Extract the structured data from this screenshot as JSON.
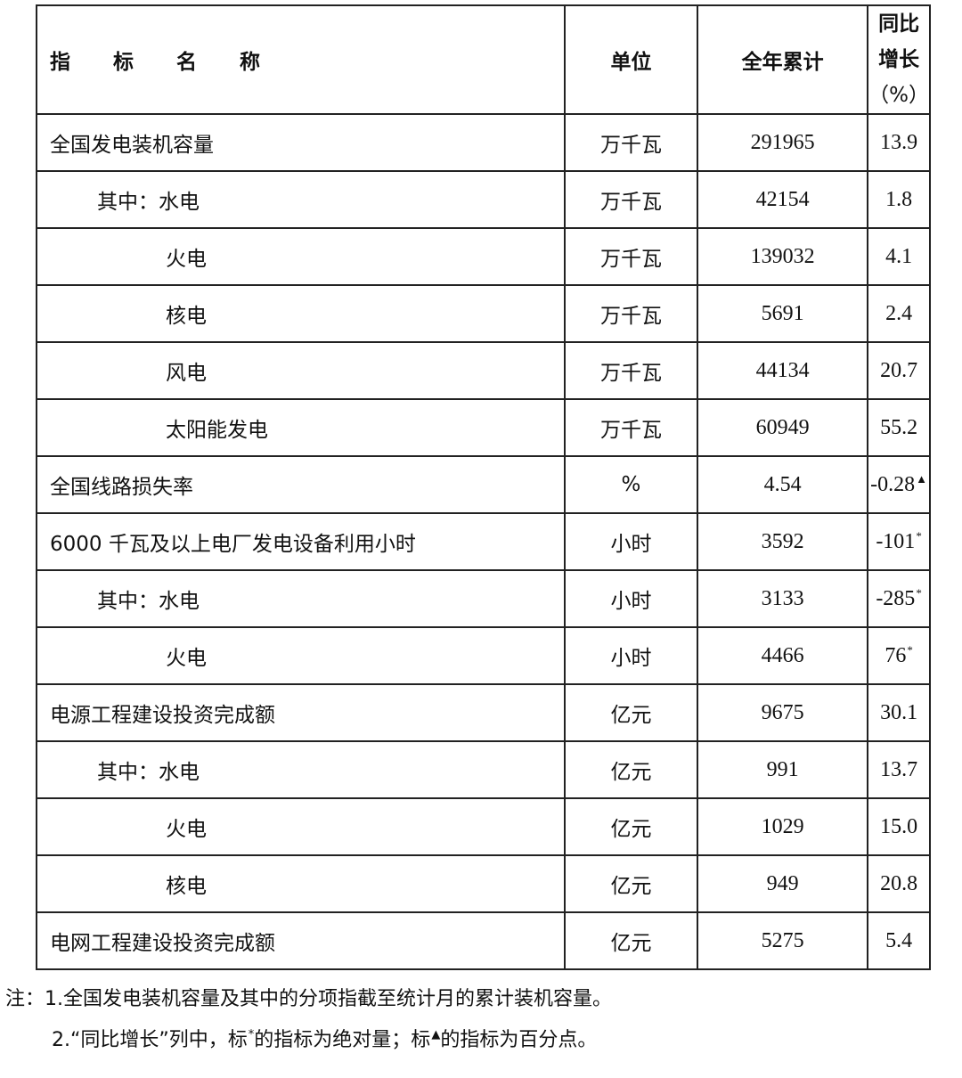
{
  "header": {
    "name": "指 标 名 称",
    "unit": "单位",
    "total": "全年累计",
    "growth_line1": "同比增长",
    "growth_line2": "（%）"
  },
  "rows": [
    {
      "name": "全国发电装机容量",
      "level": 0,
      "unit": "万千瓦",
      "total": "291965",
      "growth": "13.9",
      "mark": ""
    },
    {
      "name": "其中：水电",
      "level": 1,
      "unit": "万千瓦",
      "total": "42154",
      "growth": "1.8",
      "mark": ""
    },
    {
      "name": "火电",
      "level": 2,
      "unit": "万千瓦",
      "total": "139032",
      "growth": "4.1",
      "mark": ""
    },
    {
      "name": "核电",
      "level": 2,
      "unit": "万千瓦",
      "total": "5691",
      "growth": "2.4",
      "mark": ""
    },
    {
      "name": "风电",
      "level": 2,
      "unit": "万千瓦",
      "total": "44134",
      "growth": "20.7",
      "mark": ""
    },
    {
      "name": "太阳能发电",
      "level": 2,
      "unit": "万千瓦",
      "total": "60949",
      "growth": "55.2",
      "mark": ""
    },
    {
      "name": "全国线路损失率",
      "level": 0,
      "unit": "%",
      "total": "4.54",
      "growth": "-0.28",
      "mark": "▲"
    },
    {
      "name": "6000 千瓦及以上电厂发电设备利用小时",
      "level": 0,
      "unit": "小时",
      "total": "3592",
      "growth": "-101",
      "mark": "*"
    },
    {
      "name": "其中：水电",
      "level": 1,
      "unit": "小时",
      "total": "3133",
      "growth": "-285",
      "mark": "*"
    },
    {
      "name": "火电",
      "level": 2,
      "unit": "小时",
      "total": "4466",
      "growth": "76",
      "mark": "*"
    },
    {
      "name": "电源工程建设投资完成额",
      "level": 0,
      "unit": "亿元",
      "total": "9675",
      "growth": "30.1",
      "mark": ""
    },
    {
      "name": "其中：水电",
      "level": 1,
      "unit": "亿元",
      "total": "991",
      "growth": "13.7",
      "mark": ""
    },
    {
      "name": "火电",
      "level": 2,
      "unit": "亿元",
      "total": "1029",
      "growth": "15.0",
      "mark": ""
    },
    {
      "name": "核电",
      "level": 2,
      "unit": "亿元",
      "total": "949",
      "growth": "20.8",
      "mark": ""
    },
    {
      "name": "电网工程建设投资完成额",
      "level": 0,
      "unit": "亿元",
      "total": "5275",
      "growth": "5.4",
      "mark": ""
    }
  ],
  "notes": {
    "line1": "注：1.全国发电装机容量及其中的分项指截至统计月的累计装机容量。",
    "line2_a": "2.“同比增长”列中，标",
    "line2_star": "*",
    "line2_b": "的指标为绝对量；标",
    "line2_tri": "▲",
    "line2_c": "的指标为百分点。"
  }
}
